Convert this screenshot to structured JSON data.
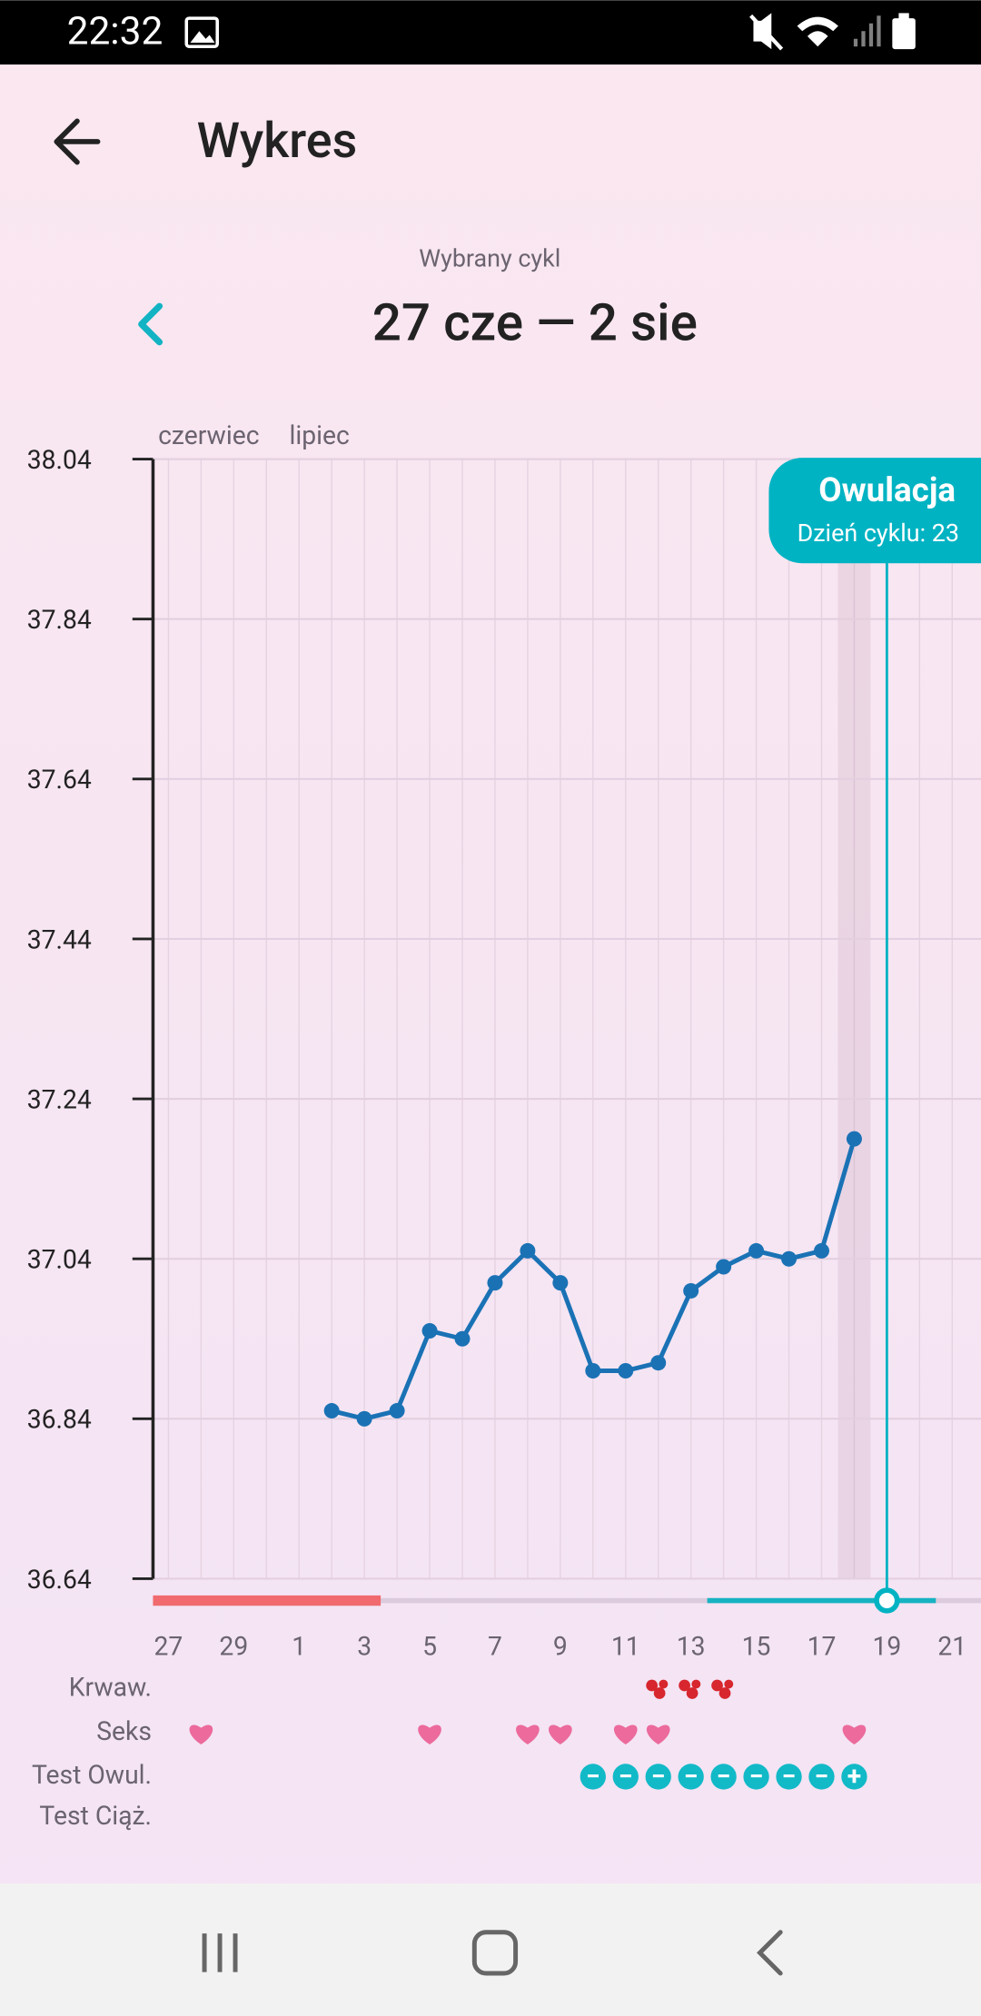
{
  "status_bar": {
    "time": "22:32"
  },
  "header": {
    "title": "Wykres"
  },
  "cycle": {
    "label": "Wybrany cykl",
    "range": "27 cze — 2 sie"
  },
  "chart_data": {
    "type": "line",
    "months": [
      "czerwiec",
      "lipiec"
    ],
    "categories": [
      "27",
      null,
      "29",
      null,
      "1",
      null,
      "3",
      null,
      "5",
      null,
      "7",
      null,
      "9",
      null,
      "11",
      null,
      "13",
      null,
      "15",
      null,
      "17",
      null,
      "19",
      null,
      "21",
      null
    ],
    "values": [
      null,
      null,
      null,
      null,
      null,
      36.85,
      36.84,
      36.85,
      36.95,
      36.94,
      37.01,
      37.05,
      37.01,
      36.9,
      36.9,
      36.91,
      37.0,
      37.03,
      37.05,
      37.04,
      37.05,
      37.19,
      null,
      null,
      null,
      null
    ],
    "color": "#1a72b5",
    "ylim": [
      36.64,
      38.04
    ],
    "yticks": [
      36.64,
      36.84,
      37.04,
      37.24,
      37.44,
      37.64,
      37.84,
      38.04
    ],
    "grid": true,
    "ovulation": {
      "title": "Owulacja",
      "cycle_day": {
        "value": 23,
        "label": "Dzień cyklu: 23"
      },
      "color": "#00b3c3"
    },
    "period": {
      "days": [
        0,
        6
      ],
      "color": "#f06a6e"
    },
    "fertile_window": {
      "days": [
        17,
        23
      ],
      "color": "#17b3c2"
    },
    "rows": [
      {
        "label": "Krwaw.",
        "marks": [
          false,
          false,
          false,
          false,
          false,
          false,
          false,
          false,
          false,
          false,
          false,
          false,
          false,
          false,
          false,
          true,
          true,
          true,
          false,
          false,
          false,
          false,
          false,
          false,
          false,
          false
        ]
      },
      {
        "label": "Seks",
        "marks": [
          false,
          true,
          false,
          false,
          false,
          false,
          false,
          false,
          true,
          false,
          false,
          true,
          true,
          false,
          true,
          true,
          false,
          false,
          false,
          false,
          false,
          true,
          false,
          false,
          false,
          false
        ]
      },
      {
        "label": "Test Owul.",
        "marks": [
          null,
          null,
          null,
          null,
          null,
          null,
          null,
          null,
          null,
          null,
          null,
          null,
          null,
          "−",
          "−",
          "−",
          "−",
          "−",
          "−",
          "−",
          "−",
          "+",
          null,
          null,
          null,
          null
        ]
      },
      {
        "label": "Test Ciąż.",
        "marks": [
          null,
          null,
          null,
          null,
          null,
          null,
          null,
          null,
          null,
          null,
          null,
          null,
          null,
          null,
          null,
          null,
          null,
          null,
          null,
          null,
          null,
          null,
          null,
          null,
          null,
          null
        ]
      }
    ]
  }
}
